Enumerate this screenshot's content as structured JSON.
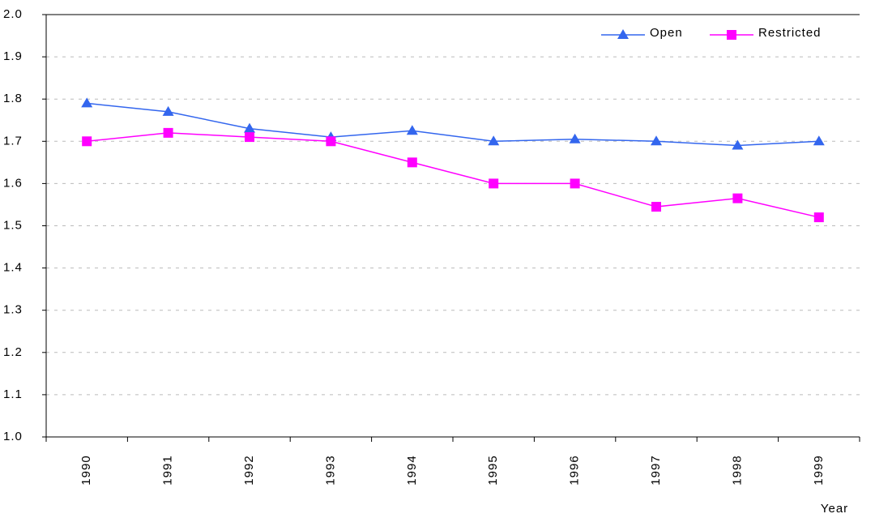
{
  "chart_data": {
    "type": "line",
    "x_label": "Year",
    "categories": [
      "1990",
      "1991",
      "1992",
      "1993",
      "1994",
      "1995",
      "1996",
      "1997",
      "1998",
      "1999"
    ],
    "series": [
      {
        "name": "Open",
        "color": "#3366ee",
        "marker": "triangle",
        "values": [
          1.79,
          1.77,
          1.73,
          1.71,
          1.725,
          1.7,
          1.705,
          1.7,
          1.69,
          1.7
        ]
      },
      {
        "name": "Restricted",
        "color": "#ff00ff",
        "marker": "square",
        "values": [
          1.7,
          1.72,
          1.71,
          1.7,
          1.65,
          1.6,
          1.6,
          1.545,
          1.565,
          1.52
        ]
      }
    ],
    "ylim": [
      1.0,
      2.0
    ],
    "yticks": [
      {
        "value": 1.0,
        "label": "1.0"
      },
      1.1,
      1.2,
      1.3,
      1.4,
      1.5,
      1.6,
      1.7,
      1.8,
      1.9,
      {
        "value": 2.0,
        "label": "2.0"
      }
    ],
    "grid": true,
    "legend": "top-right"
  }
}
